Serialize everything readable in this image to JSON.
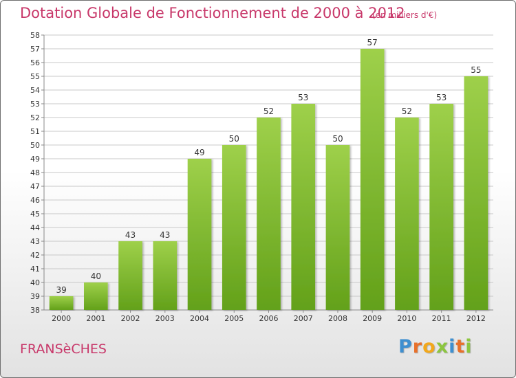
{
  "title": "Dotation Globale de Fonctionnement de 2000 à 2012",
  "subtitle": "(en milliers d'€)",
  "place_name": "FRANSèCHES",
  "logo": {
    "letters": [
      "P",
      "r",
      "o",
      "x",
      "i",
      "t",
      "i"
    ],
    "colors": [
      "#3e8fd0",
      "#e8702a",
      "#f2a81c",
      "#8cc63f",
      "#3e8fd0",
      "#e8702a",
      "#8cc63f"
    ]
  },
  "chart_data": {
    "type": "bar",
    "categories": [
      "2000",
      "2001",
      "2002",
      "2003",
      "2004",
      "2005",
      "2006",
      "2007",
      "2008",
      "2009",
      "2010",
      "2011",
      "2012"
    ],
    "values": [
      39,
      40,
      43,
      43,
      49,
      50,
      52,
      53,
      50,
      57,
      52,
      53,
      55
    ],
    "ylim": [
      38,
      58
    ],
    "yticks": [
      38,
      39,
      40,
      41,
      42,
      43,
      44,
      45,
      46,
      47,
      48,
      49,
      50,
      51,
      52,
      53,
      54,
      55,
      56,
      57,
      58
    ],
    "grid": true,
    "colors": {
      "bar_top": "#9ed04a",
      "bar_bottom": "#63a11a",
      "grid": "#c8c8c8",
      "axis": "#888888"
    }
  }
}
